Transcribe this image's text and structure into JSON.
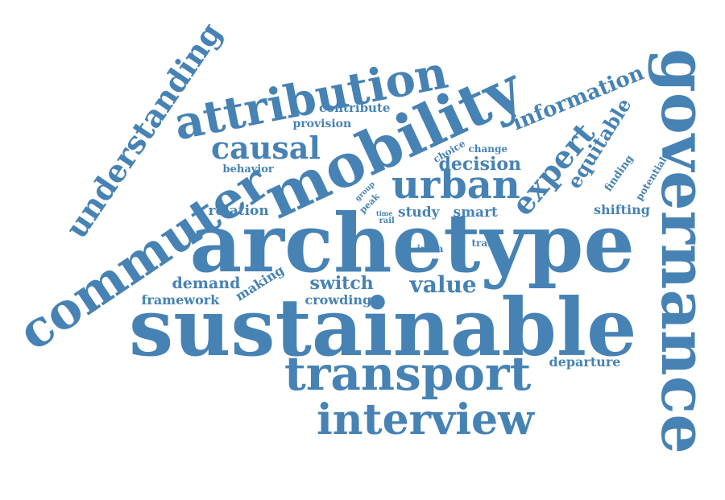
{
  "color": "#4682b4",
  "words": {
    "sustainable": "sustainable",
    "archetype": "archetype",
    "mobility": "mobility",
    "governance": "governance",
    "commuter": "commuter",
    "attribution": "attribution",
    "transport": "transport",
    "interview": "interview",
    "understanding": "understanding",
    "urban": "urban",
    "causal": "causal",
    "expert": "expert",
    "information": "information",
    "equitable": "equitable",
    "value": "value",
    "decision": "decision",
    "switch": "switch",
    "demand": "demand",
    "study": "study",
    "smart": "smart",
    "relation": "relation",
    "framework": "framework",
    "making": "making",
    "crowding": "crowding",
    "contribute": "contribute",
    "provision": "provision",
    "behavior": "behavior",
    "shifting": "shifting",
    "departure": "departure",
    "choice": "choice",
    "change": "change",
    "finding": "finding",
    "potential": "potential",
    "intra": "intra",
    "train": "train",
    "peak": "peak",
    "group": "group",
    "time": "time",
    "rail": "rail"
  }
}
